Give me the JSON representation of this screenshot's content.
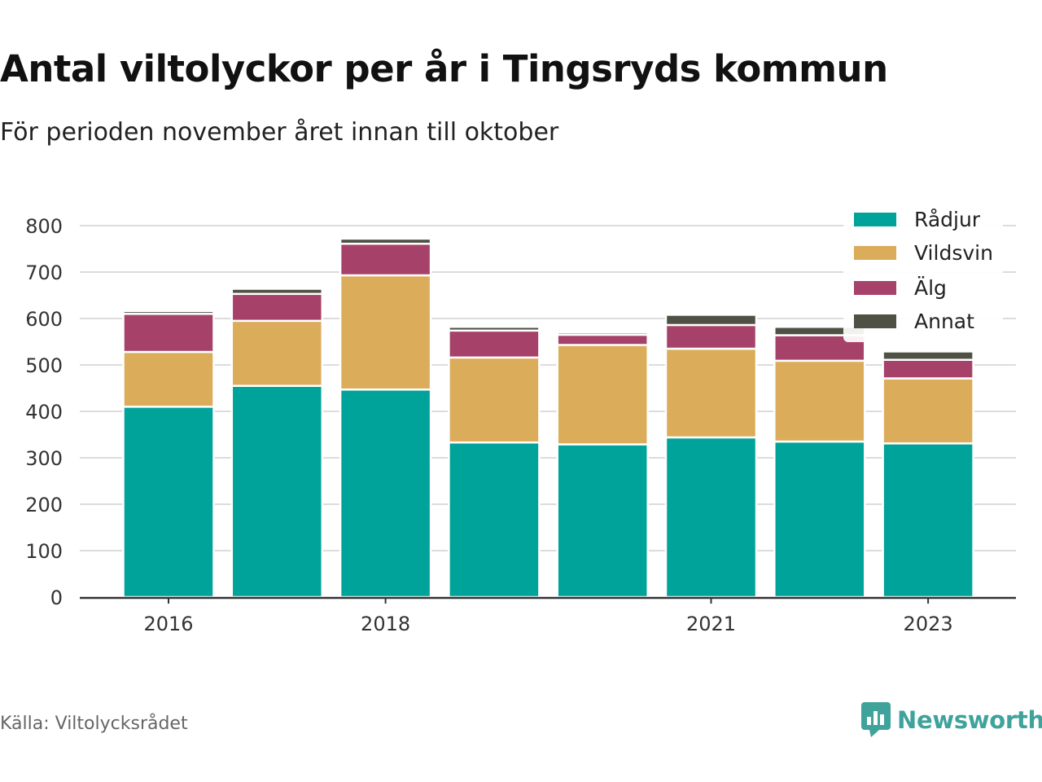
{
  "title": "Antal viltolyckor per år i Tingsryds kommun",
  "subtitle": "För perioden november året innan till oktober",
  "source": "Källa: Viltolycksrådet",
  "brand": {
    "name": "Newsworthy",
    "icon": "newsworthy-logo-icon",
    "color": "#3fa29b"
  },
  "chart_data": {
    "type": "bar",
    "stacked": true,
    "categories": [
      "2016",
      "2017",
      "2018",
      "2019",
      "2020",
      "2021",
      "2022",
      "2023"
    ],
    "x_tick_labels": [
      "2016",
      "",
      "2018",
      "",
      "",
      "2021",
      "",
      "2023"
    ],
    "ylim": [
      0,
      800
    ],
    "yticks": [
      0,
      100,
      200,
      300,
      400,
      500,
      600,
      700,
      800
    ],
    "grid": true,
    "legend_position": "top-right",
    "series": [
      {
        "name": "Rådjur",
        "color": "#00a39a",
        "values": [
          410,
          455,
          447,
          333,
          329,
          344,
          335,
          331
        ]
      },
      {
        "name": "Vildsvin",
        "color": "#dbac5a",
        "values": [
          118,
          140,
          246,
          183,
          214,
          191,
          174,
          140
        ]
      },
      {
        "name": "Älg",
        "color": "#a64269",
        "values": [
          82,
          58,
          68,
          58,
          22,
          51,
          55,
          40
        ]
      },
      {
        "name": "Annat",
        "color": "#4f5145",
        "values": [
          6,
          11,
          11,
          8,
          5,
          22,
          18,
          18
        ]
      }
    ]
  }
}
